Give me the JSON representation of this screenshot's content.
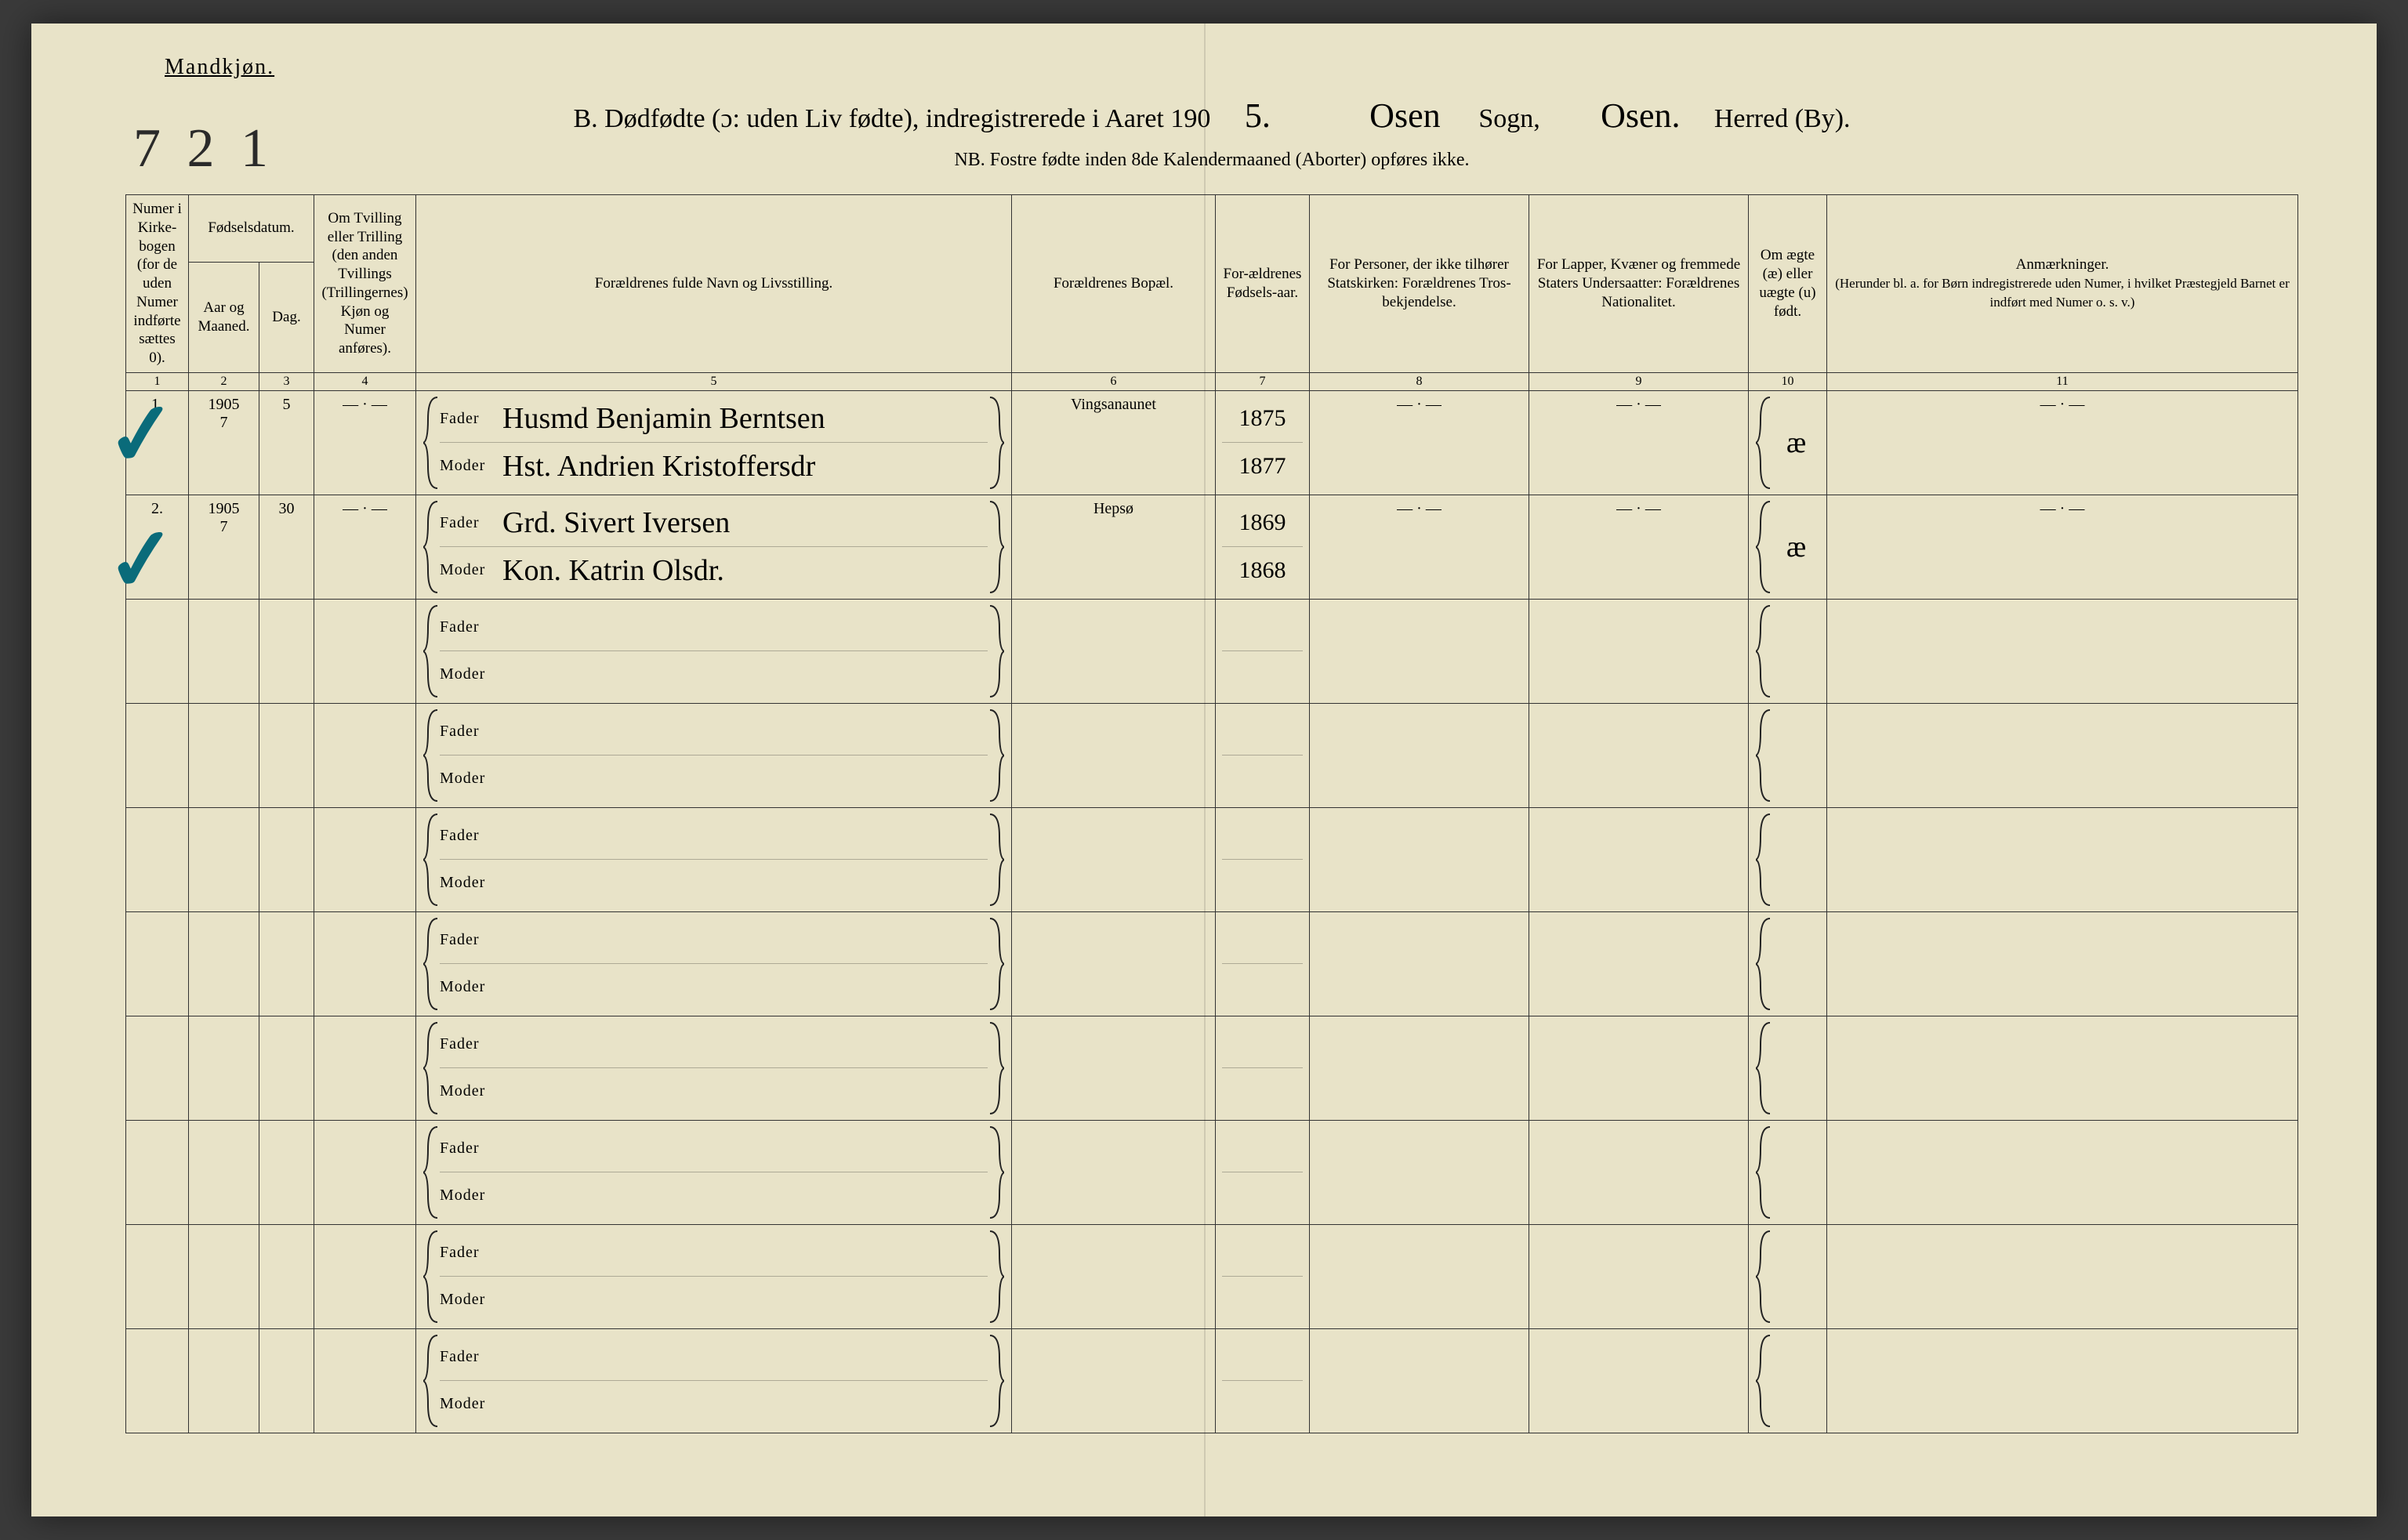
{
  "header": {
    "gender_label": "Mandkjøn.",
    "page_number_handwritten": "7 2 1",
    "title_prefix": "B.  Dødfødte (ɔ: uden Liv fødte), indregistrerede i Aaret 190",
    "year_suffix_hand": "5.",
    "sogn_hand": "Osen",
    "sogn_label": "Sogn,",
    "herred_hand": "Osen.",
    "herred_label": "Herred (By).",
    "nb_line": "NB.  Fostre fødte inden 8de Kalendermaaned (Aborter) opføres ikke."
  },
  "columns": {
    "c1": "Numer i Kirke-bogen (for de uden Numer indførte sættes 0).",
    "c2_group": "Fødselsdatum.",
    "c2a": "Aar og Maaned.",
    "c2b": "Dag.",
    "c4": "Om Tvilling eller Trilling (den anden Tvillings (Trillingernes) Kjøn og Numer anføres).",
    "c5": "Forældrenes fulde Navn og Livsstilling.",
    "c6": "Forældrenes Bopæl.",
    "c7": "For-ældrenes Fødsels-aar.",
    "c8": "For Personer, der ikke tilhører Statskirken: Forældrenes Tros-bekjendelse.",
    "c9": "For Lapper, Kvæner og fremmede Staters Undersaatter: Forældrenes Nationalitet.",
    "c10": "Om ægte (æ) eller uægte (u) født.",
    "c11": "Anmærkninger.",
    "c11_sub": "(Herunder bl. a. for Børn indregistrerede uden Numer, i hvilket Præstegjeld Barnet er indført med Numer o. s. v.)"
  },
  "colnums": [
    "1",
    "2",
    "3",
    "4",
    "5",
    "6",
    "7",
    "8",
    "9",
    "10",
    "11"
  ],
  "role_labels": {
    "father": "Fader",
    "mother": "Moder"
  },
  "rows": [
    {
      "num": "1.",
      "year_month": "1905\n7",
      "day": "5",
      "twin": "— · —",
      "father": "Husmd Benjamin Berntsen",
      "mother": "Hst. Andrien Kristoffersdr",
      "residence": "Vingsanaunet",
      "father_year": "1875",
      "mother_year": "1877",
      "c8": "— · —",
      "c9": "— · —",
      "c10": "æ",
      "c11": "— · —"
    },
    {
      "num": "2.",
      "year_month": "1905\n7",
      "day": "30",
      "twin": "— · —",
      "father": "Grd. Sivert Iversen",
      "mother": "Kon. Katrin Olsdr.",
      "residence": "Hepsø",
      "father_year": "1869",
      "mother_year": "1868",
      "c8": "— · —",
      "c9": "— · —",
      "c10": "æ",
      "c11": "— · —"
    }
  ],
  "empty_row_count": 8,
  "colors": {
    "paper": "#e8e3c8",
    "ink": "#222222",
    "check": "#0a6b7a"
  }
}
